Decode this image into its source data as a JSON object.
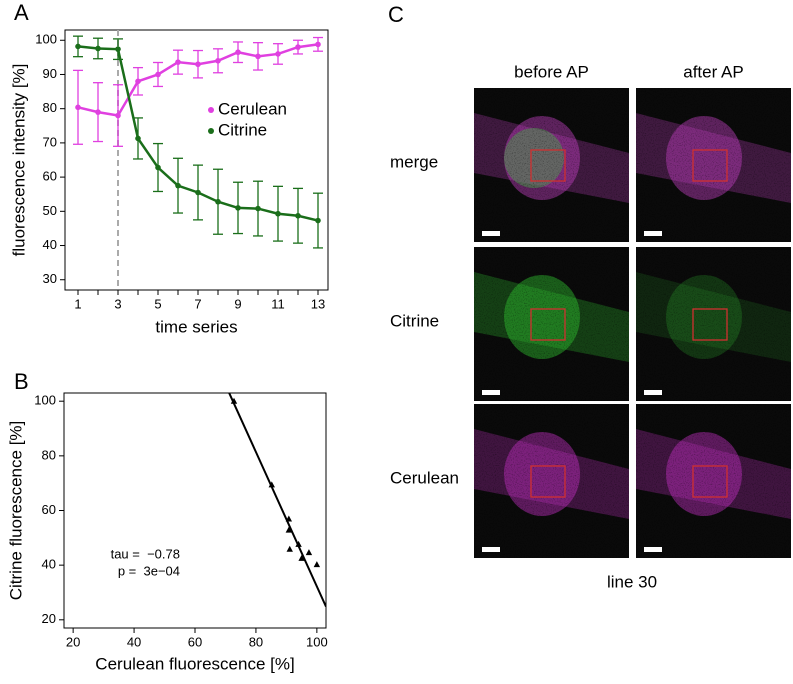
{
  "panels": {
    "a": "A",
    "b": "B",
    "c": "C"
  },
  "chart_data": [
    {
      "type": "line",
      "ylabel": "fluorescence intensity [%]",
      "xlabel": "time series",
      "x": [
        1,
        2,
        3,
        4,
        5,
        6,
        7,
        8,
        9,
        10,
        11,
        12,
        13
      ],
      "series": [
        {
          "name": "Cerulean",
          "color": "#e040e0",
          "values": [
            80.4,
            79,
            78,
            88,
            90,
            93.6,
            93,
            94,
            96.5,
            95.3,
            96,
            98,
            98.8
          ],
          "errors": [
            10.8,
            8.6,
            9,
            4,
            3.5,
            3.5,
            4,
            3.5,
            3,
            4,
            3,
            2,
            2
          ]
        },
        {
          "name": "Citrine",
          "color": "#1a6e1a",
          "values": [
            98.2,
            97.6,
            97.4,
            71.3,
            62.8,
            57.5,
            55.5,
            52.8,
            51,
            50.8,
            49.3,
            48.7,
            47.3
          ],
          "errors": [
            3,
            3,
            3,
            6,
            7,
            8,
            8,
            9.5,
            7.5,
            8,
            8,
            8,
            8
          ]
        }
      ],
      "vline": 3,
      "xlim": [
        0.35,
        13.5
      ],
      "xticks": [
        1,
        3,
        5,
        7,
        9,
        11,
        13
      ],
      "xminor_ticks": [
        2,
        4,
        6,
        8,
        10,
        12
      ],
      "ylim": [
        27,
        103
      ],
      "yticks": [
        30,
        40,
        50,
        60,
        70,
        80,
        90,
        100
      ],
      "legend": "upper right"
    },
    {
      "type": "scatter",
      "ylabel": "Citrine fluorescence [%]",
      "xlabel": "Cerulean fluorescence [%]",
      "x": [
        72.8,
        85.2,
        90.8,
        90.8,
        91.1,
        94,
        95,
        97.4,
        100
      ],
      "values": [
        100,
        69.4,
        56.9,
        52.8,
        45.8,
        47.6,
        42.5,
        44.6,
        40.2
      ],
      "color": "#000000",
      "fit": {
        "slope": -2.46,
        "intercept": 278.2
      },
      "annotations": [
        "tau =  −0.78",
        "p =  3e−04"
      ],
      "xlim": [
        17,
        103
      ],
      "xticks": [
        20,
        40,
        60,
        80,
        100
      ],
      "ylim": [
        17,
        103
      ],
      "yticks": [
        20,
        40,
        60,
        80,
        100
      ]
    }
  ],
  "images": {
    "columns": [
      "before AP",
      "after AP"
    ],
    "rows": [
      "merge",
      "Citrine",
      "Cerulean"
    ],
    "caption": "line 30"
  }
}
